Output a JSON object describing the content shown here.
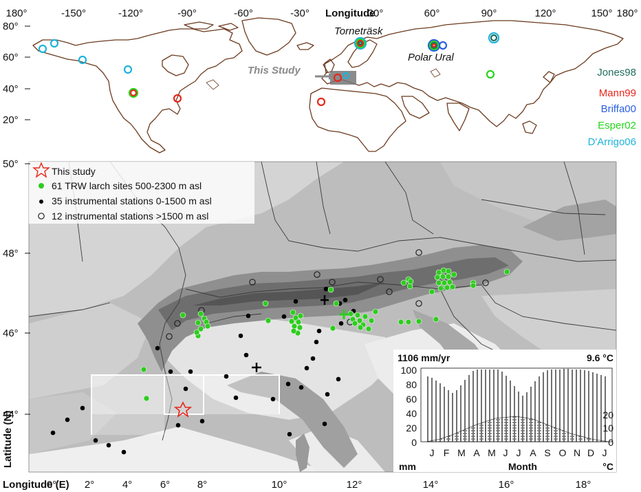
{
  "world_map": {
    "xlabel": "Longitude",
    "lon_ticks": [
      "180°",
      "-150°",
      "-120°",
      "-90°",
      "-60°",
      "-30°",
      "30°",
      "60°",
      "90°",
      "120°",
      "150°",
      "180°"
    ],
    "lat_ticks": [
      "80°",
      "60°",
      "40°",
      "20°"
    ],
    "labels": {
      "tornetrask": "Torneträsk",
      "polar_ural": "Polar Ural",
      "this_study": "This Study"
    },
    "series": [
      {
        "name": "Jones98",
        "color": "#1f6f5c"
      },
      {
        "name": "Mann99",
        "color": "#e8261b"
      },
      {
        "name": "Briffa00",
        "color": "#2c5fe0"
      },
      {
        "name": "Esper02",
        "color": "#27d61c"
      },
      {
        "name": "D'Arrigo06",
        "color": "#1fb3d9"
      }
    ]
  },
  "alps_map": {
    "ylabel": "Latitude (N)",
    "xlabel": "Longitude (E)",
    "lat_ticks": [
      "50°",
      "48°",
      "46°",
      "44°"
    ],
    "lon_ticks": [
      "0°",
      "2°",
      "4°",
      "6°",
      "8°",
      "10°",
      "12°",
      "14°",
      "16°",
      "18°"
    ],
    "legend": [
      {
        "label": "This study",
        "color": "#e8261b",
        "symbol": "star"
      },
      {
        "label": "61 TRW larch sites 500-2300 m asl",
        "color": "#2ecc1f",
        "symbol": "dot"
      },
      {
        "label": "35 instrumental stations 0-1500 m asl",
        "color": "#000000",
        "symbol": "small-dot"
      },
      {
        "label": "12 instrumental stations >1500 m asl",
        "color": "#000000",
        "symbol": "ring"
      }
    ]
  },
  "climate_inset": {
    "precip": "1106 mm/yr",
    "temp": "9.6 °C",
    "y_left_ticks": [
      "100",
      "80",
      "60",
      "40",
      "20",
      "0"
    ],
    "y_right_ticks": [
      "20",
      "10",
      "0"
    ],
    "months": [
      "J",
      "F",
      "M",
      "A",
      "M",
      "J",
      "J",
      "A",
      "S",
      "O",
      "N",
      "D",
      "J"
    ],
    "xlabel": "Month",
    "left_unit": "mm",
    "right_unit": "°C"
  }
}
